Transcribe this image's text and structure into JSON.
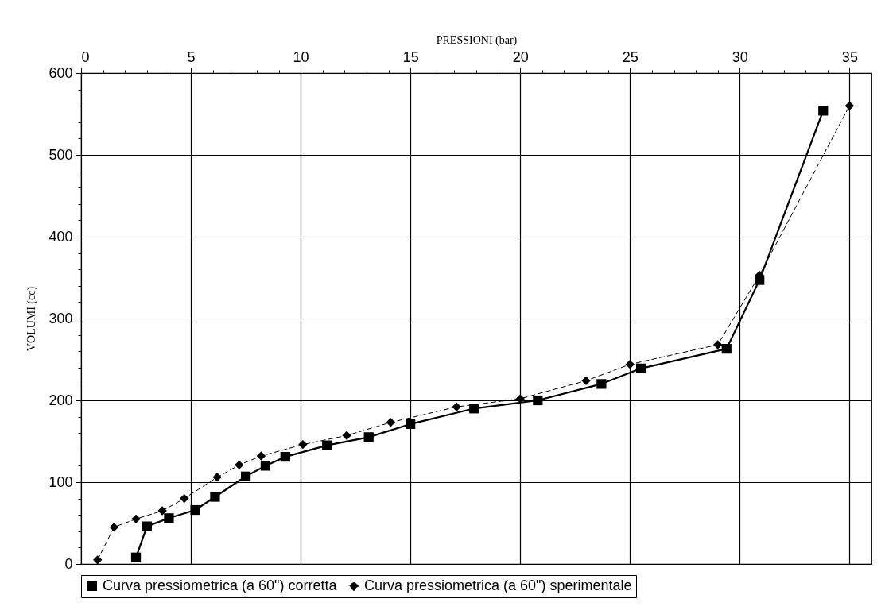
{
  "chart_data": {
    "type": "line",
    "xlabel": "PRESSIONI (bar)",
    "ylabel": "VOLUMI (cc)",
    "xlim": [
      0,
      36
    ],
    "ylim": [
      0,
      600
    ],
    "xticks": [
      0,
      {
        "value": 1,
        "label": null
      },
      {
        "value": 2,
        "label": null
      },
      {
        "value": 3,
        "label": null
      },
      {
        "value": 4,
        "label": null
      },
      5,
      {
        "value": 6,
        "label": null
      },
      {
        "value": 7,
        "label": null
      },
      {
        "value": 8,
        "label": null
      },
      {
        "value": 9,
        "label": null
      },
      10,
      {
        "value": 11,
        "label": null
      },
      {
        "value": 12,
        "label": null
      },
      {
        "value": 13,
        "label": null
      },
      {
        "value": 14,
        "label": null
      },
      15,
      {
        "value": 16,
        "label": null
      },
      {
        "value": 17,
        "label": null
      },
      {
        "value": 18,
        "label": null
      },
      {
        "value": 19,
        "label": null
      },
      20,
      {
        "value": 21,
        "label": null
      },
      {
        "value": 22,
        "label": null
      },
      {
        "value": 23,
        "label": null
      },
      {
        "value": 24,
        "label": null
      },
      25,
      {
        "value": 26,
        "label": null
      },
      {
        "value": 27,
        "label": null
      },
      {
        "value": 28,
        "label": null
      },
      {
        "value": 29,
        "label": null
      },
      30,
      {
        "value": 31,
        "label": null
      },
      {
        "value": 32,
        "label": null
      },
      {
        "value": 33,
        "label": null
      },
      {
        "value": 34,
        "label": null
      },
      35
    ],
    "yticks": [
      0,
      {
        "value": 20,
        "label": null
      },
      {
        "value": 40,
        "label": null
      },
      {
        "value": 60,
        "label": null
      },
      {
        "value": 80,
        "label": null
      },
      100,
      {
        "value": 120,
        "label": null
      },
      {
        "value": 140,
        "label": null
      },
      {
        "value": 160,
        "label": null
      },
      {
        "value": 180,
        "label": null
      },
      200,
      {
        "value": 220,
        "label": null
      },
      {
        "value": 240,
        "label": null
      },
      {
        "value": 260,
        "label": null
      },
      {
        "value": 280,
        "label": null
      },
      300,
      {
        "value": 320,
        "label": null
      },
      {
        "value": 340,
        "label": null
      },
      {
        "value": 360,
        "label": null
      },
      {
        "value": 380,
        "label": null
      },
      400,
      {
        "value": 420,
        "label": null
      },
      {
        "value": 440,
        "label": null
      },
      {
        "value": 460,
        "label": null
      },
      {
        "value": 480,
        "label": null
      },
      500,
      {
        "value": 520,
        "label": null
      },
      {
        "value": 540,
        "label": null
      },
      {
        "value": 560,
        "label": null
      },
      {
        "value": 580,
        "label": null
      },
      600
    ],
    "grid": true,
    "legend": "bottom",
    "series": [
      {
        "name": "Curva pressiometrica (a 60\") corretta",
        "color": "#000000",
        "marker": "square",
        "line_style": "solid",
        "x": [
          2.5,
          3.0,
          4.0,
          5.2,
          6.1,
          7.5,
          8.4,
          9.3,
          11.2,
          13.1,
          15.0,
          17.9,
          20.8,
          23.7,
          25.5,
          29.4,
          30.9,
          33.8
        ],
        "values": [
          8,
          46,
          56,
          66,
          82,
          107,
          120,
          131,
          145,
          155,
          171,
          190,
          200,
          220,
          239,
          263,
          347,
          554
        ]
      },
      {
        "name": "Curva pressiometrica (a 60\") sperimentale",
        "color": "#000000",
        "marker": "diamond",
        "line_style": "dashed",
        "x": [
          0.75,
          1.5,
          2.5,
          3.7,
          4.7,
          6.2,
          7.2,
          8.2,
          10.1,
          12.1,
          14.1,
          17.1,
          20.0,
          23.0,
          25.0,
          29.0,
          30.9,
          35.0
        ],
        "values": [
          5,
          45,
          55,
          65,
          80,
          106,
          121,
          132,
          146,
          157,
          173,
          192,
          202,
          224,
          244,
          268,
          353,
          560
        ]
      }
    ]
  }
}
